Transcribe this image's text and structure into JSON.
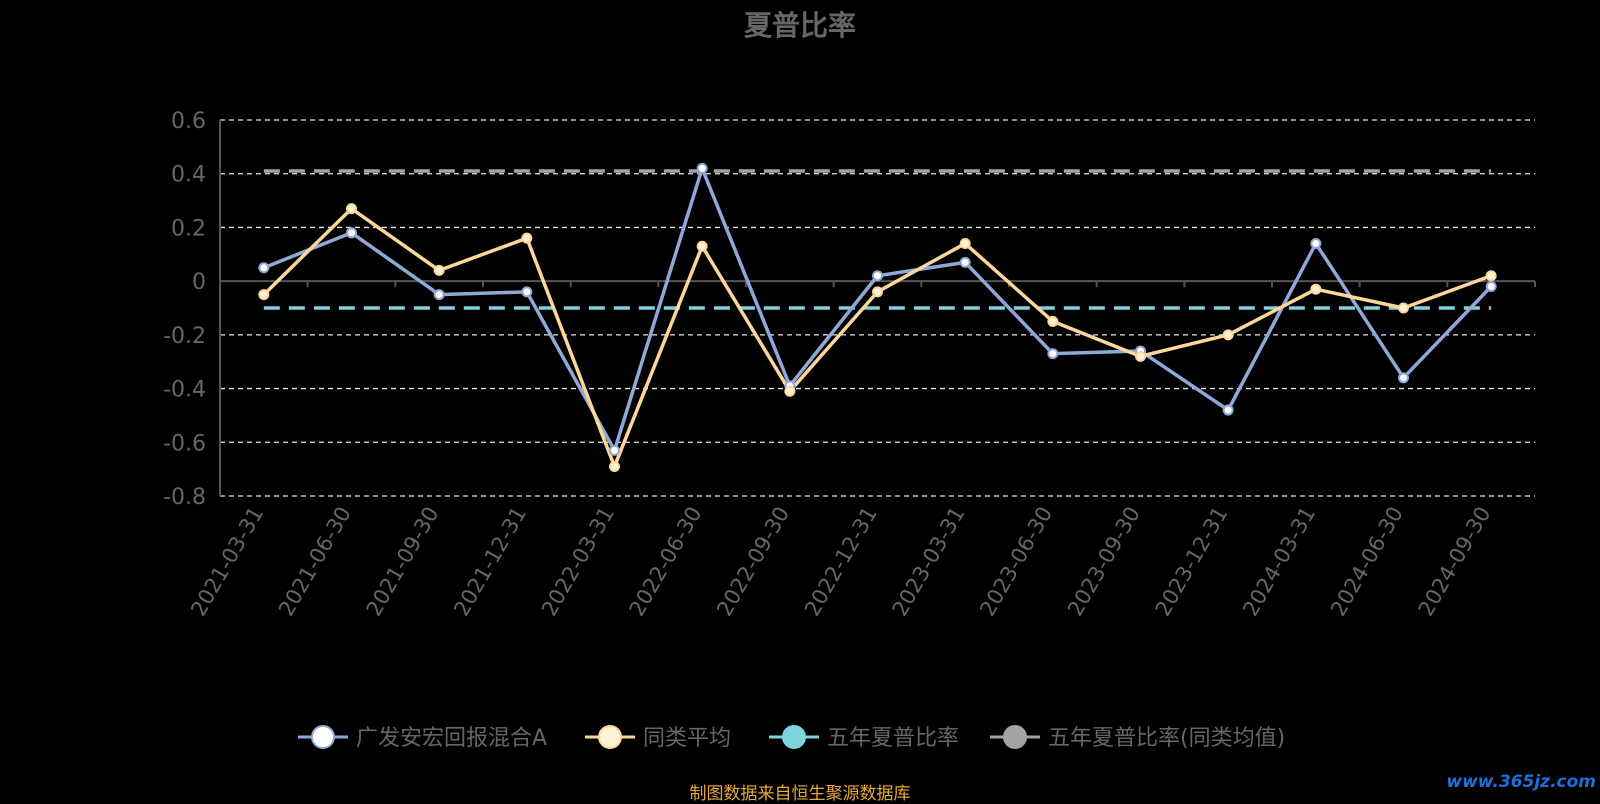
{
  "chart_data": {
    "type": "line",
    "title": "夏普比率",
    "categories": [
      "2021-03-31",
      "2021-06-30",
      "2021-09-30",
      "2021-12-31",
      "2022-03-31",
      "2022-06-30",
      "2022-09-30",
      "2022-12-31",
      "2023-03-31",
      "2023-06-30",
      "2023-09-30",
      "2023-12-31",
      "2024-03-31",
      "2024-06-30",
      "2024-09-30"
    ],
    "ylim": [
      -0.8,
      0.6
    ],
    "yticks": [
      0.6,
      0.4,
      0.2,
      0,
      -0.2,
      -0.4,
      -0.6,
      -0.8
    ],
    "ytick_labels": [
      "0.6",
      "0.4",
      "0.2",
      "0",
      "-0.2",
      "-0.4",
      "-0.6",
      "-0.8"
    ],
    "grid": true,
    "legend_position": "bottom-center",
    "series": [
      {
        "name": "广发安宏回报混合A",
        "type": "line",
        "color": "#8fa9d6",
        "marker_fill": "#ffffff",
        "values": [
          0.05,
          0.18,
          -0.05,
          -0.04,
          -0.63,
          0.42,
          -0.39,
          0.02,
          0.07,
          -0.27,
          -0.26,
          -0.48,
          0.14,
          -0.36,
          -0.02
        ]
      },
      {
        "name": "同类平均",
        "type": "line",
        "color": "#fdd79a",
        "marker_fill": "#fdf3d8",
        "values": [
          -0.05,
          0.27,
          0.04,
          0.16,
          -0.69,
          0.13,
          -0.41,
          -0.04,
          0.14,
          -0.15,
          -0.28,
          -0.2,
          -0.03,
          -0.1,
          0.02
        ]
      },
      {
        "name": "五年夏普比率",
        "type": "reference",
        "color": "#7fd3de",
        "value": -0.1
      },
      {
        "name": "五年夏普比率(同类均值)",
        "type": "reference",
        "color": "#a3a3a3",
        "value": 0.41
      }
    ]
  },
  "footer": {
    "credit": "制图数据来自恒生聚源数据库",
    "watermark": "www.365jz.com"
  }
}
